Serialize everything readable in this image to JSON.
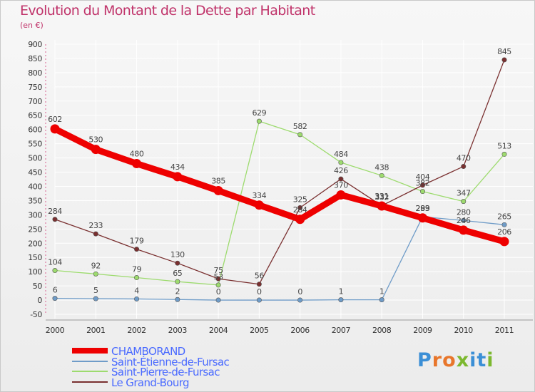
{
  "title": "Evolution du Montant de la Dette par Habitant",
  "subtitle": "(en €)",
  "logo": {
    "letters": [
      "P",
      "r",
      "o",
      "x",
      "i",
      "t",
      "i"
    ],
    "colors": [
      "#3b8fd6",
      "#e8762b",
      "#e8762b",
      "#7cb82f",
      "#3b8fd6",
      "#3b8fd6",
      "#7cb82f"
    ]
  },
  "chart_data": {
    "type": "line",
    "title": "Evolution du Montant de la Dette par Habitant",
    "ylabel": "(en €)",
    "xlabel": "",
    "x": [
      "2000",
      "2001",
      "2002",
      "2003",
      "2004",
      "2005",
      "2006",
      "2007",
      "2008",
      "2009",
      "2010",
      "2011"
    ],
    "ylim": [
      -50,
      900
    ],
    "yticks": [
      -50,
      0,
      50,
      100,
      150,
      200,
      250,
      300,
      350,
      400,
      450,
      500,
      550,
      600,
      650,
      700,
      750,
      800,
      850,
      900
    ],
    "grid": true,
    "legend_position": "bottom-left",
    "series": [
      {
        "name": "CHAMBORAND",
        "color": "#ee0000",
        "values": [
          602,
          530,
          480,
          434,
          385,
          334,
          284,
          370,
          331,
          289,
          246,
          206
        ]
      },
      {
        "name": "Saint-Étienne-de-Fursac",
        "color": "#6f9cc8",
        "values": [
          6,
          5,
          4,
          2,
          0,
          0,
          0,
          1,
          1,
          293,
          280,
          265
        ]
      },
      {
        "name": "Saint-Pierre-de-Fursac",
        "color": "#9ddb6e",
        "values": [
          104,
          92,
          79,
          65,
          53,
          629,
          582,
          484,
          438,
          382,
          347,
          513
        ]
      },
      {
        "name": "Le Grand-Bourg",
        "color": "#7a3030",
        "values": [
          284,
          233,
          179,
          130,
          75,
          56,
          325,
          426,
          332,
          404,
          470,
          845
        ]
      }
    ]
  }
}
